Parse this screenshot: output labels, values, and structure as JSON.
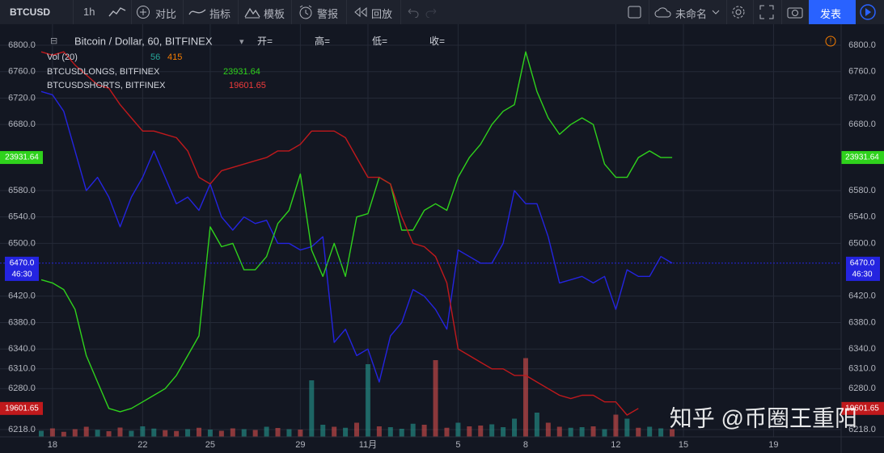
{
  "toolbar": {
    "symbol": "BTCUSD",
    "interval": "1h",
    "compare": "对比",
    "indicators": "指标",
    "templates": "模板",
    "alert": "警报",
    "replay": "回放",
    "layout_name": "未命名",
    "publish": "发表"
  },
  "chart_data": {
    "type": "line",
    "title": "Bitcoin / Dollar, 60, BITFINEX",
    "ohlc_labels": [
      "开=",
      "高=",
      "低=",
      "收="
    ],
    "x": [
      -0.5,
      0,
      0.5,
      1,
      1.5,
      2,
      2.5,
      3,
      3.5,
      4,
      4.5,
      5,
      5.5,
      6,
      6.5,
      7,
      7.5,
      8,
      8.5,
      9,
      9.5,
      10,
      10.5,
      11,
      11.5,
      12,
      12.5,
      13,
      13.5,
      14,
      14.5,
      15,
      15.5,
      16,
      16.5,
      17,
      17.5,
      18,
      18.5,
      19,
      19.5,
      20,
      20.5,
      21,
      21.5,
      22,
      22.5,
      23,
      23.5,
      24,
      24.5,
      25,
      25.5,
      26,
      26.5,
      27,
      27.5
    ],
    "xlim": [
      -2.33,
      35.0
    ],
    "xticks": [
      {
        "value": 0,
        "label": "18"
      },
      {
        "value": 4,
        "label": "22"
      },
      {
        "value": 7,
        "label": "25"
      },
      {
        "value": 11,
        "label": "29"
      },
      {
        "value": 14,
        "label": "11月"
      },
      {
        "value": 18,
        "label": "5"
      },
      {
        "value": 21,
        "label": "8"
      },
      {
        "value": 25,
        "label": "12"
      },
      {
        "value": 28,
        "label": "15"
      },
      {
        "value": 32,
        "label": "19"
      }
    ],
    "ylim": [
      6207,
      6819.6
    ],
    "yticks": [
      {
        "value": 6218,
        "label": "6218.0"
      },
      {
        "value": 6280,
        "label": "6280.0"
      },
      {
        "value": 6310,
        "label": "6310.0"
      },
      {
        "value": 6340,
        "label": "6340.0"
      },
      {
        "value": 6380,
        "label": "6380.0"
      },
      {
        "value": 6420,
        "label": "6420.0"
      },
      {
        "value": 6500,
        "label": "6500.0"
      },
      {
        "value": 6540,
        "label": "6540.0"
      },
      {
        "value": 6580,
        "label": "6580.0"
      },
      {
        "value": 6680,
        "label": "6680.0"
      },
      {
        "value": 6720,
        "label": "6720.0"
      },
      {
        "value": 6760,
        "label": "6760.0"
      },
      {
        "value": 6800,
        "label": "6800.0"
      }
    ],
    "grid": true,
    "last_price": {
      "value": 6470,
      "label": "6470.0"
    },
    "countdown": "46:30",
    "series": [
      {
        "name": "BTCUSD",
        "color": "#2424e0",
        "values": [
          6730,
          6725,
          6700,
          6640,
          6580,
          6600,
          6570,
          6525,
          6570,
          6600,
          6640,
          6600,
          6560,
          6570,
          6550,
          6590,
          6540,
          6520,
          6540,
          6530,
          6535,
          6500,
          6500,
          6490,
          6495,
          6510,
          6350,
          6370,
          6330,
          6340,
          6290,
          6360,
          6380,
          6430,
          6420,
          6400,
          6370,
          6490,
          6480,
          6470,
          6470,
          6500,
          6580,
          6560,
          6560,
          6510,
          6440,
          6445,
          6450,
          6440,
          6450,
          6400,
          6460,
          6450,
          6450,
          6480,
          6470
        ]
      },
      {
        "name": "BTCUSDLONGS, BITFINEX",
        "color": "#2fd21c",
        "last": 23931.64,
        "values": [
          6445,
          6440,
          6430,
          6400,
          6330,
          6290,
          6250,
          6245,
          6250,
          6260,
          6270,
          6280,
          6300,
          6330,
          6360,
          6525,
          6495,
          6500,
          6460,
          6460,
          6480,
          6530,
          6550,
          6605,
          6490,
          6450,
          6500,
          6450,
          6540,
          6545,
          6600,
          6590,
          6520,
          6520,
          6550,
          6560,
          6550,
          6600,
          6630,
          6650,
          6680,
          6700,
          6710,
          6790,
          6730,
          6690,
          6665,
          6680,
          6690,
          6680,
          6620,
          6600,
          6600,
          6630,
          6640,
          6630,
          6630
        ]
      },
      {
        "name": "BTCUSDSHORTS, BITFINEX",
        "color": "#c0191c",
        "last": 19601.65,
        "values": [
          6790,
          6785,
          6790,
          6770,
          6755,
          6740,
          6735,
          6710,
          6690,
          6670,
          6670,
          6665,
          6660,
          6640,
          6600,
          6590,
          6610,
          6615,
          6620,
          6625,
          6630,
          6640,
          6640,
          6650,
          6670,
          6670,
          6670,
          6660,
          6630,
          6600,
          6600,
          6590,
          6540,
          6500,
          6495,
          6480,
          6440,
          6340,
          6330,
          6320,
          6310,
          6310,
          6300,
          6300,
          6290,
          6280,
          6270,
          6265,
          6270,
          6270,
          6260,
          6260,
          6240,
          6250,
          null,
          null,
          null
        ]
      }
    ],
    "volume": {
      "name": "Vol (20)",
      "last": [
        56,
        415
      ],
      "ylim": [
        0,
        4000
      ],
      "up_color": "#26a69a",
      "down_color": "#ef5350",
      "values": [
        300,
        420,
        250,
        380,
        500,
        350,
        280,
        460,
        300,
        520,
        410,
        330,
        290,
        380,
        450,
        360,
        300,
        420,
        380,
        340,
        500,
        440,
        380,
        360,
        2800,
        600,
        500,
        450,
        700,
        3600,
        520,
        480,
        400,
        650,
        600,
        3800,
        450,
        700,
        520,
        560,
        620,
        480,
        900,
        3900,
        1200,
        700,
        500,
        450,
        480,
        520,
        380,
        1100,
        900,
        450,
        500,
        420,
        380
      ]
    },
    "watermark": "知乎 @币圈王重阳"
  }
}
